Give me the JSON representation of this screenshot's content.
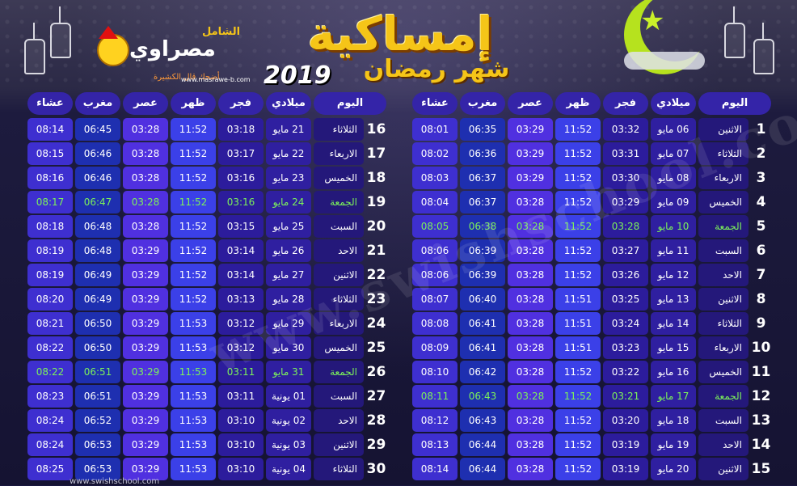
{
  "header": {
    "title": "إمساكية",
    "subtitle": "شهر رمضان",
    "year": "2019",
    "logo_name": "مصراوي",
    "logo_top": "الشامل",
    "logo_slogan": "أضحك قال الكشيرة",
    "site_url": "www.masrawe-b.com",
    "watermark": "www.swishschool.com",
    "footer_url": "www.swishschool.com"
  },
  "columns": [
    "اليوم",
    "ميلادي",
    "فجر",
    "ظهر",
    "عصر",
    "مغرب",
    "عشاء"
  ],
  "right_table": [
    {
      "num": "1",
      "day": "الاثنين",
      "date": "06 مايو",
      "fajr": "03:32",
      "dhuhr": "11:52",
      "asr": "03:29",
      "maghrib": "06:35",
      "isha": "08:01",
      "friday": false
    },
    {
      "num": "2",
      "day": "الثلاثاء",
      "date": "07 مايو",
      "fajr": "03:31",
      "dhuhr": "11:52",
      "asr": "03:29",
      "maghrib": "06:36",
      "isha": "08:02",
      "friday": false
    },
    {
      "num": "3",
      "day": "الاربعاء",
      "date": "08 مايو",
      "fajr": "03:30",
      "dhuhr": "11:52",
      "asr": "03:29",
      "maghrib": "06:37",
      "isha": "08:03",
      "friday": false
    },
    {
      "num": "4",
      "day": "الخميس",
      "date": "09 مايو",
      "fajr": "03:29",
      "dhuhr": "11:52",
      "asr": "03:28",
      "maghrib": "06:37",
      "isha": "08:04",
      "friday": false
    },
    {
      "num": "5",
      "day": "الجمعة",
      "date": "10 مايو",
      "fajr": "03:28",
      "dhuhr": "11:52",
      "asr": "03:28",
      "maghrib": "06:38",
      "isha": "08:05",
      "friday": true
    },
    {
      "num": "6",
      "day": "السبت",
      "date": "11 مايو",
      "fajr": "03:27",
      "dhuhr": "11:52",
      "asr": "03:28",
      "maghrib": "06:39",
      "isha": "08:06",
      "friday": false
    },
    {
      "num": "7",
      "day": "الاحد",
      "date": "12 مايو",
      "fajr": "03:26",
      "dhuhr": "11:52",
      "asr": "03:28",
      "maghrib": "06:39",
      "isha": "08:06",
      "friday": false
    },
    {
      "num": "8",
      "day": "الاثنين",
      "date": "13 مايو",
      "fajr": "03:25",
      "dhuhr": "11:51",
      "asr": "03:28",
      "maghrib": "06:40",
      "isha": "08:07",
      "friday": false
    },
    {
      "num": "9",
      "day": "الثلاثاء",
      "date": "14 مايو",
      "fajr": "03:24",
      "dhuhr": "11:51",
      "asr": "03:28",
      "maghrib": "06:41",
      "isha": "08:08",
      "friday": false
    },
    {
      "num": "10",
      "day": "الاربعاء",
      "date": "15 مايو",
      "fajr": "03:23",
      "dhuhr": "11:51",
      "asr": "03:28",
      "maghrib": "06:41",
      "isha": "08:09",
      "friday": false
    },
    {
      "num": "11",
      "day": "الخميس",
      "date": "16 مايو",
      "fajr": "03:22",
      "dhuhr": "11:52",
      "asr": "03:28",
      "maghrib": "06:42",
      "isha": "08:10",
      "friday": false
    },
    {
      "num": "12",
      "day": "الجمعة",
      "date": "17 مايو",
      "fajr": "03:21",
      "dhuhr": "11:52",
      "asr": "03:28",
      "maghrib": "06:43",
      "isha": "08:11",
      "friday": true
    },
    {
      "num": "13",
      "day": "السبت",
      "date": "18 مايو",
      "fajr": "03:20",
      "dhuhr": "11:52",
      "asr": "03:28",
      "maghrib": "06:43",
      "isha": "08:12",
      "friday": false
    },
    {
      "num": "14",
      "day": "الاحد",
      "date": "19 مايو",
      "fajr": "03:19",
      "dhuhr": "11:52",
      "asr": "03:28",
      "maghrib": "06:44",
      "isha": "08:13",
      "friday": false
    },
    {
      "num": "15",
      "day": "الاثنين",
      "date": "20 مايو",
      "fajr": "03:19",
      "dhuhr": "11:52",
      "asr": "03:28",
      "maghrib": "06:44",
      "isha": "08:14",
      "friday": false
    }
  ],
  "left_table": [
    {
      "num": "16",
      "day": "الثلاثاء",
      "date": "21 مايو",
      "fajr": "03:18",
      "dhuhr": "11:52",
      "asr": "03:28",
      "maghrib": "06:45",
      "isha": "08:14",
      "friday": false
    },
    {
      "num": "17",
      "day": "الاربعاء",
      "date": "22 مايو",
      "fajr": "03:17",
      "dhuhr": "11:52",
      "asr": "03:28",
      "maghrib": "06:46",
      "isha": "08:15",
      "friday": false
    },
    {
      "num": "18",
      "day": "الخميس",
      "date": "23 مايو",
      "fajr": "03:16",
      "dhuhr": "11:52",
      "asr": "03:28",
      "maghrib": "06:46",
      "isha": "08:16",
      "friday": false
    },
    {
      "num": "19",
      "day": "الجمعة",
      "date": "24 مايو",
      "fajr": "03:16",
      "dhuhr": "11:52",
      "asr": "03:28",
      "maghrib": "06:47",
      "isha": "08:17",
      "friday": true
    },
    {
      "num": "20",
      "day": "السبت",
      "date": "25 مايو",
      "fajr": "03:15",
      "dhuhr": "11:52",
      "asr": "03:28",
      "maghrib": "06:48",
      "isha": "08:18",
      "friday": false
    },
    {
      "num": "21",
      "day": "الاحد",
      "date": "26 مايو",
      "fajr": "03:14",
      "dhuhr": "11:52",
      "asr": "03:29",
      "maghrib": "06:48",
      "isha": "08:19",
      "friday": false
    },
    {
      "num": "22",
      "day": "الاثنين",
      "date": "27 مايو",
      "fajr": "03:14",
      "dhuhr": "11:52",
      "asr": "03:29",
      "maghrib": "06:49",
      "isha": "08:19",
      "friday": false
    },
    {
      "num": "23",
      "day": "الثلاثاء",
      "date": "28 مايو",
      "fajr": "03:13",
      "dhuhr": "11:52",
      "asr": "03:29",
      "maghrib": "06:49",
      "isha": "08:20",
      "friday": false
    },
    {
      "num": "24",
      "day": "الاربعاء",
      "date": "29 مايو",
      "fajr": "03:12",
      "dhuhr": "11:53",
      "asr": "03:29",
      "maghrib": "06:50",
      "isha": "08:21",
      "friday": false
    },
    {
      "num": "25",
      "day": "الخميس",
      "date": "30 مايو",
      "fajr": "03:12",
      "dhuhr": "11:53",
      "asr": "03:29",
      "maghrib": "06:50",
      "isha": "08:22",
      "friday": false
    },
    {
      "num": "26",
      "day": "الجمعة",
      "date": "31 مايو",
      "fajr": "03:11",
      "dhuhr": "11:53",
      "asr": "03:29",
      "maghrib": "06:51",
      "isha": "08:22",
      "friday": true
    },
    {
      "num": "27",
      "day": "السبت",
      "date": "01 يونية",
      "fajr": "03:11",
      "dhuhr": "11:53",
      "asr": "03:29",
      "maghrib": "06:51",
      "isha": "08:23",
      "friday": false
    },
    {
      "num": "28",
      "day": "الاحد",
      "date": "02 يونية",
      "fajr": "03:10",
      "dhuhr": "11:53",
      "asr": "03:29",
      "maghrib": "06:52",
      "isha": "08:24",
      "friday": false
    },
    {
      "num": "29",
      "day": "الاثنين",
      "date": "03 يونية",
      "fajr": "03:10",
      "dhuhr": "11:53",
      "asr": "03:29",
      "maghrib": "06:53",
      "isha": "08:24",
      "friday": false
    },
    {
      "num": "30",
      "day": "الثلاثاء",
      "date": "04 يونية",
      "fajr": "03:10",
      "dhuhr": "11:53",
      "asr": "03:29",
      "maghrib": "06:53",
      "isha": "08:25",
      "friday": false
    }
  ],
  "colors": {
    "friday_text": "#7cf25a",
    "title": "#f5c518",
    "header_cell": "#3424a8"
  }
}
